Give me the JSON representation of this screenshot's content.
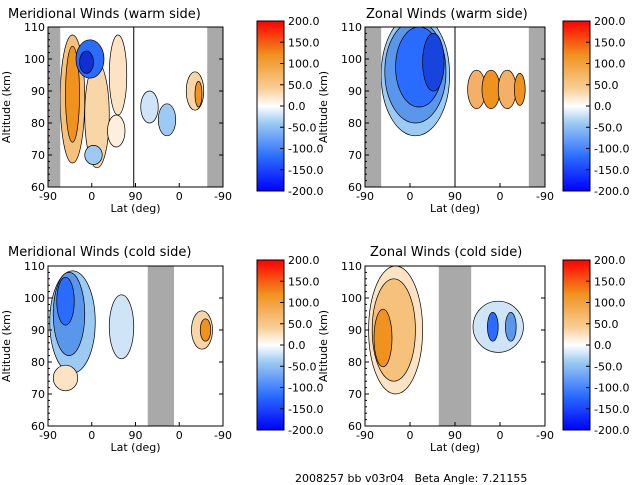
{
  "footer": {
    "run_label": "2008257 bb v03r04",
    "beta_label": "Beta Angle: 7.21155"
  },
  "chart_data": [
    {
      "type": "heatmap",
      "title": "Meridional Winds (warm side)",
      "xlabel": "Lat (deg)",
      "ylabel": "Altitude (km)",
      "x_ticks": [
        "-90",
        "0",
        "90",
        "0",
        "-90"
      ],
      "y_ticks": [
        60,
        70,
        80,
        90,
        100,
        110
      ],
      "ylim": [
        60,
        110
      ],
      "gray_bands": [
        "left edge",
        "right edge"
      ],
      "colorbar": {
        "ticks": [
          "200.0",
          "150.0",
          "100.0",
          "50.0",
          "0.0",
          "-50.0",
          "-100.0",
          "-150.0",
          "-200.0"
        ],
        "range": [
          -200,
          200
        ]
      },
      "dominant_features": [
        {
          "region": "ascending leg, lat -80 to 0",
          "alt": [
            75,
            110
          ],
          "sign": "positive",
          "peak": 70
        },
        {
          "region": "ascending leg, lat 0 to 40",
          "alt": [
            90,
            108
          ],
          "sign": "negative",
          "peak": -40
        },
        {
          "region": "descending leg, lat 60 to 0",
          "alt": [
            85,
            100
          ],
          "sign": "negative",
          "peak": -30
        },
        {
          "region": "descending leg, lat -30 to -80",
          "alt": [
            85,
            100
          ],
          "sign": "mixed",
          "peak": 40
        }
      ]
    },
    {
      "type": "heatmap",
      "title": "Zonal Winds (warm side)",
      "xlabel": "Lat (deg)",
      "ylabel": "Altitude (km)",
      "x_ticks": [
        "-90",
        "0",
        "90",
        "0",
        "-90"
      ],
      "y_ticks": [
        60,
        70,
        80,
        90,
        100,
        110
      ],
      "ylim": [
        60,
        110
      ],
      "gray_bands": [
        "left edge",
        "right edge"
      ],
      "colorbar": {
        "ticks": [
          "200.0",
          "150.0",
          "100.0",
          "50.0",
          "0.0",
          "-50.0",
          "-100.0",
          "-150.0",
          "-200.0"
        ],
        "range": [
          -200,
          200
        ]
      },
      "dominant_features": [
        {
          "region": "ascending leg, lat -80 to 80",
          "alt": [
            75,
            110
          ],
          "sign": "negative",
          "peak": -120
        },
        {
          "region": "descending leg, lat 80 to -80",
          "alt": [
            82,
            100
          ],
          "sign": "alternating positive",
          "peak": 60
        }
      ]
    },
    {
      "type": "heatmap",
      "title": "Meridional Winds (cold side)",
      "xlabel": "Lat (deg)",
      "ylabel": "Altitude (km)",
      "x_ticks": [
        "-90",
        "0",
        "90",
        "0",
        "-90"
      ],
      "y_ticks": [
        60,
        70,
        80,
        90,
        100,
        110
      ],
      "ylim": [
        60,
        110
      ],
      "gray_bands": [
        "middle"
      ],
      "colorbar": {
        "ticks": [
          "200.0",
          "150.0",
          "100.0",
          "50.0",
          "0.0",
          "-50.0",
          "-100.0",
          "-150.0",
          "-200.0"
        ],
        "range": [
          -200,
          200
        ]
      },
      "dominant_features": [
        {
          "region": "ascending leg, lat -90 to 40",
          "alt": [
            80,
            110
          ],
          "sign": "negative",
          "peak": -70
        },
        {
          "region": "descending leg, lat 0 to -80",
          "alt": [
            85,
            100
          ],
          "sign": "positive",
          "peak": 60
        }
      ]
    },
    {
      "type": "heatmap",
      "title": "Zonal Winds (cold side)",
      "xlabel": "Lat (deg)",
      "ylabel": "Altitude (km)",
      "x_ticks": [
        "-90",
        "0",
        "90",
        "0",
        "-90"
      ],
      "y_ticks": [
        60,
        70,
        80,
        90,
        100,
        110
      ],
      "ylim": [
        60,
        110
      ],
      "gray_bands": [
        "middle"
      ],
      "colorbar": {
        "ticks": [
          "200.0",
          "150.0",
          "100.0",
          "50.0",
          "0.0",
          "-50.0",
          "-100.0",
          "-150.0",
          "-200.0"
        ],
        "range": [
          -200,
          200
        ]
      },
      "dominant_features": [
        {
          "region": "ascending leg, lat -90 to 60",
          "alt": [
            80,
            110
          ],
          "sign": "positive",
          "peak": 70
        },
        {
          "region": "descending leg, lat 60 to -80",
          "alt": [
            82,
            103
          ],
          "sign": "negative",
          "peak": -40
        }
      ]
    }
  ]
}
